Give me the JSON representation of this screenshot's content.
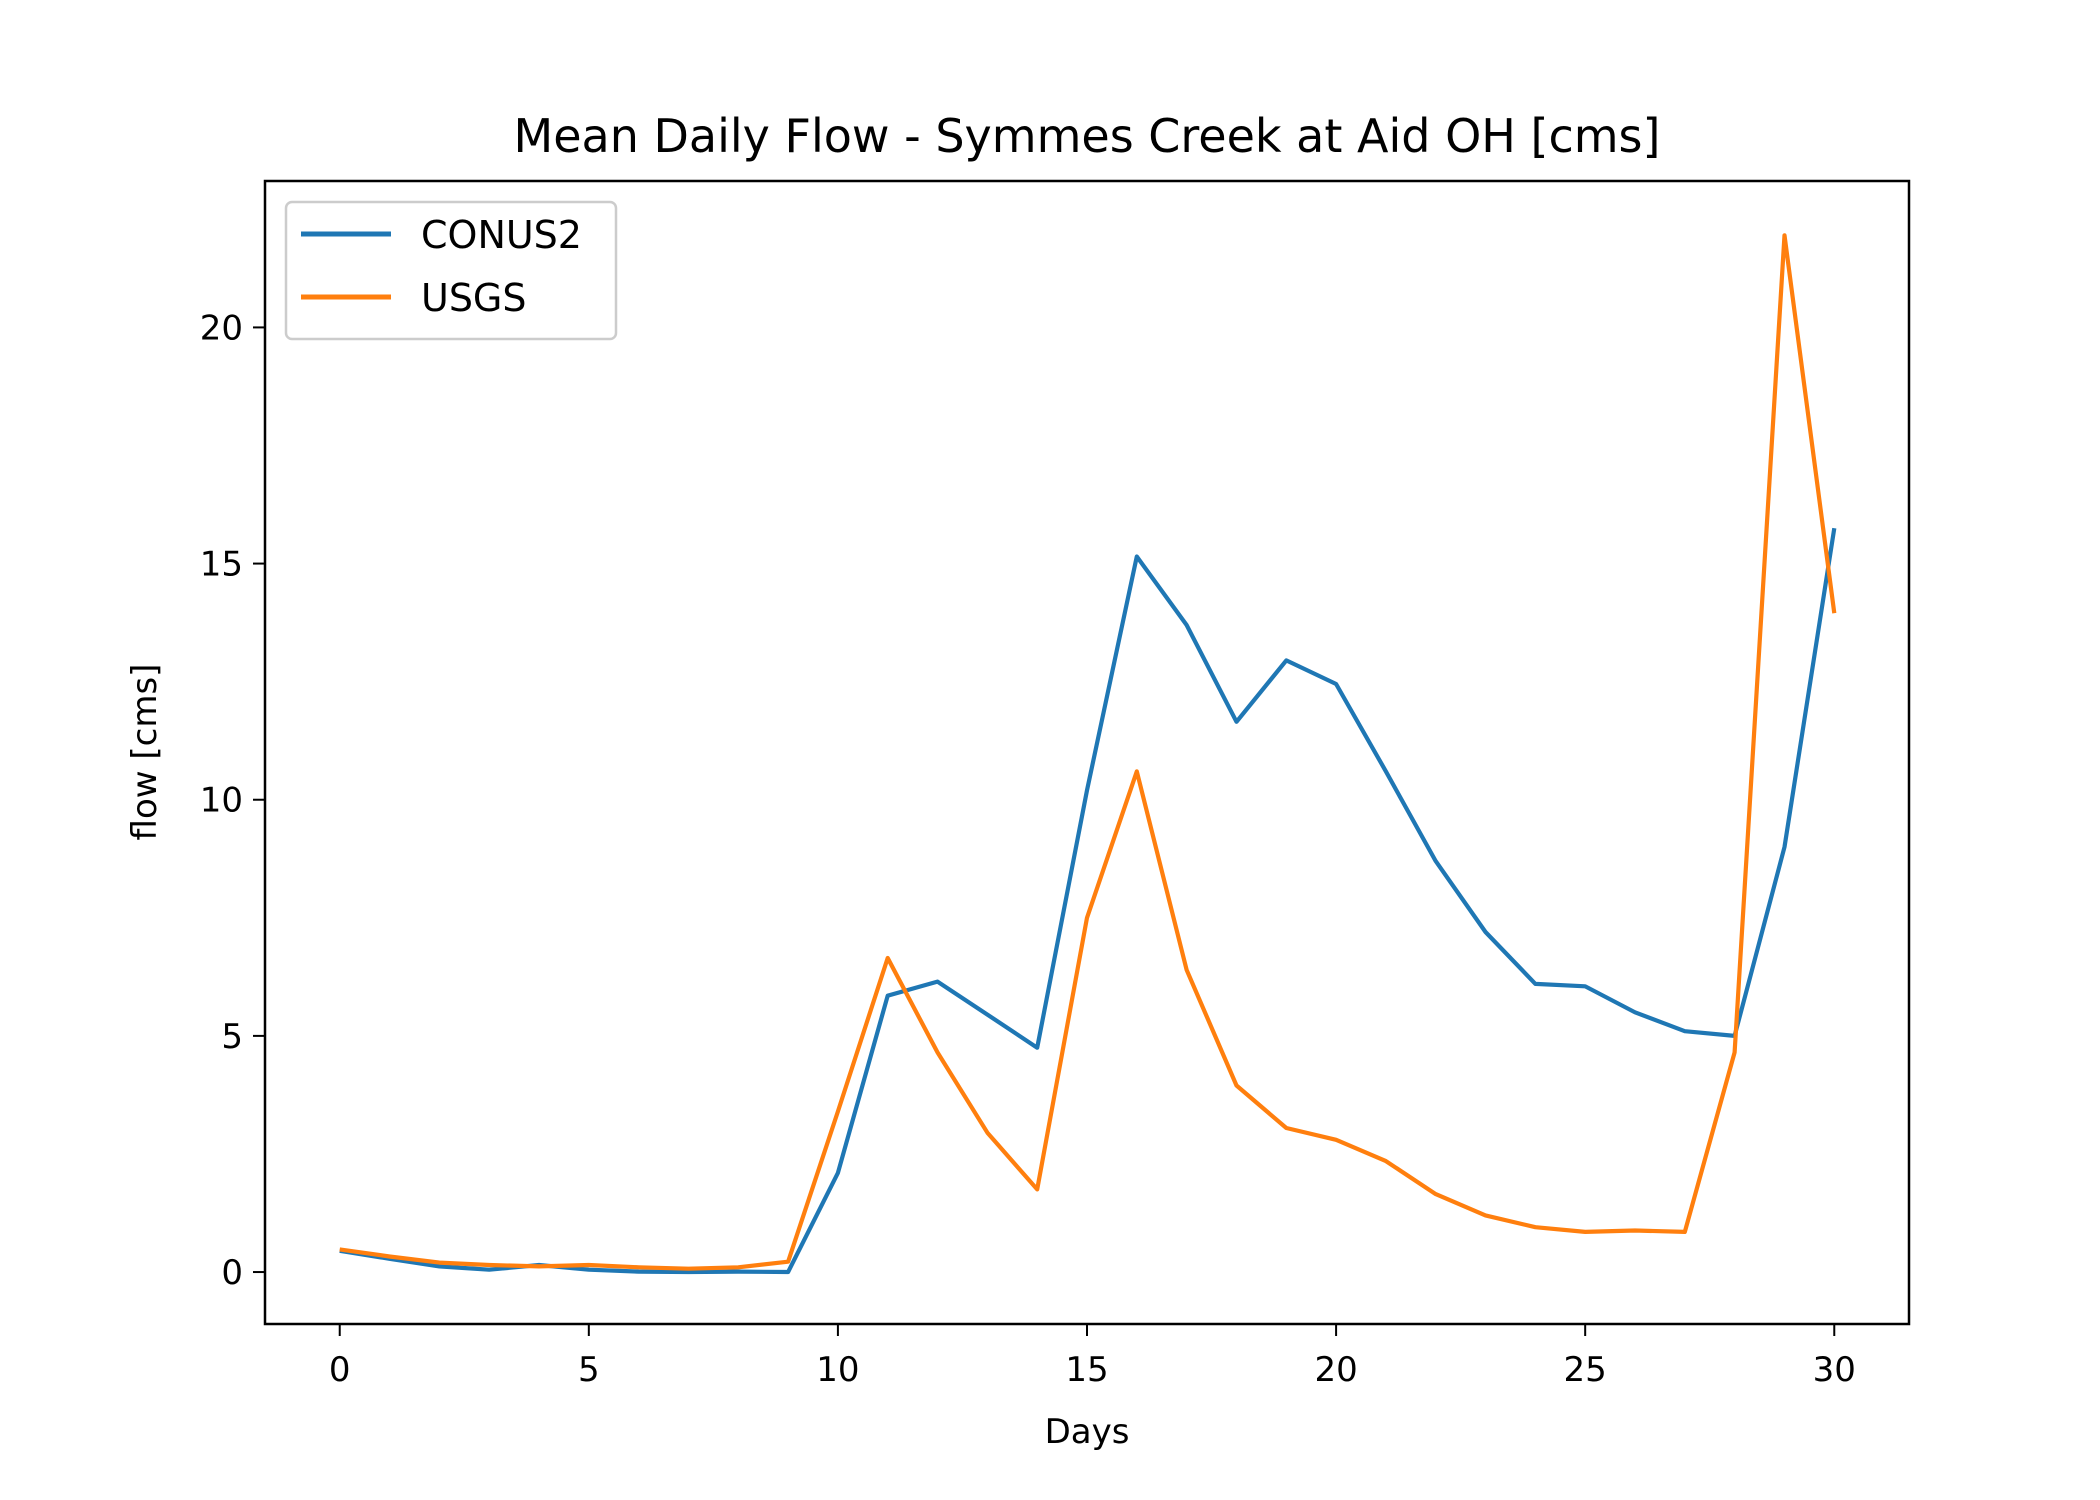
{
  "chart_data": {
    "type": "line",
    "title": "Mean Daily Flow - Symmes Creek at Aid OH [cms]",
    "xlabel": "Days",
    "ylabel": "flow [cms]",
    "xlim": [
      -1.5,
      31.5
    ],
    "ylim": [
      -1.1,
      23.1
    ],
    "xticks": [
      0,
      5,
      10,
      15,
      20,
      25,
      30
    ],
    "yticks": [
      0,
      5,
      10,
      15,
      20
    ],
    "grid": false,
    "legend_position": "top-left",
    "x": [
      0,
      1,
      2,
      3,
      4,
      5,
      6,
      7,
      8,
      9,
      10,
      11,
      12,
      13,
      14,
      15,
      16,
      17,
      18,
      19,
      20,
      21,
      22,
      23,
      24,
      25,
      26,
      27,
      28,
      29,
      30
    ],
    "series": [
      {
        "name": "CONUS2",
        "color": "#1f77b4",
        "values": [
          0.45,
          0.28,
          0.12,
          0.05,
          0.15,
          0.05,
          0.01,
          0.0,
          0.01,
          0.0,
          2.1,
          5.85,
          6.15,
          5.45,
          4.75,
          10.2,
          15.15,
          13.7,
          11.65,
          12.95,
          12.45,
          10.6,
          8.7,
          7.2,
          6.1,
          6.05,
          5.5,
          5.1,
          5.0,
          9.0,
          15.75
        ]
      },
      {
        "name": "USGS",
        "color": "#ff7f0e",
        "values": [
          0.48,
          0.33,
          0.2,
          0.15,
          0.12,
          0.15,
          0.1,
          0.07,
          0.1,
          0.22,
          3.4,
          6.65,
          4.65,
          2.95,
          1.75,
          7.5,
          10.6,
          6.4,
          3.95,
          3.05,
          2.8,
          2.35,
          1.65,
          1.2,
          0.95,
          0.85,
          0.88,
          0.85,
          4.65,
          21.95,
          13.95
        ]
      }
    ]
  }
}
